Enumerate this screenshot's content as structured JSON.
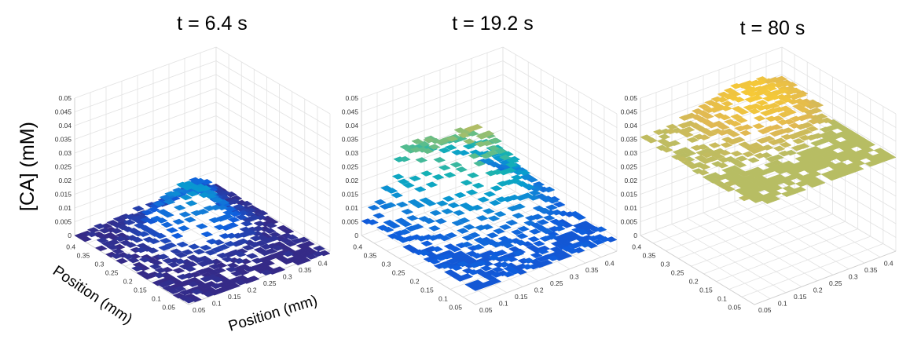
{
  "figure": {
    "zlabel": "[CA] (mM)",
    "xlabel": "Position (mm)",
    "ylabel": "Position (mm)"
  },
  "chart_data": [
    {
      "type": "surface",
      "title": "t = 6.4 s",
      "zlim": [
        0,
        0.05
      ],
      "z_ticks": [
        "0",
        "0.005",
        "0.01",
        "0.015",
        "0.02",
        "0.025",
        "0.03",
        "0.035",
        "0.04",
        "0.045",
        "0.05"
      ],
      "x_ticks": [
        "0.05",
        "0.1",
        "0.15",
        "0.2",
        "0.25",
        "0.3",
        "0.35",
        "0.4"
      ],
      "y_ticks": [
        "0.05",
        "0.1",
        "0.15",
        "0.2",
        "0.25",
        "0.3",
        "0.35",
        "0.4"
      ],
      "colormap": "parula",
      "base_level_mM": 0.0,
      "peak_level_mM": 0.022,
      "grid": true
    },
    {
      "type": "surface",
      "title": "t = 19.2 s",
      "zlim": [
        0,
        0.05
      ],
      "z_ticks": [
        "0",
        "0.005",
        "0.01",
        "0.015",
        "0.02",
        "0.025",
        "0.03",
        "0.035",
        "0.04",
        "0.045",
        "0.05"
      ],
      "x_ticks": [
        "0.05",
        "0.1",
        "0.15",
        "0.2",
        "0.25",
        "0.3",
        "0.35",
        "0.4"
      ],
      "y_ticks": [
        "0.05",
        "0.1",
        "0.15",
        "0.2",
        "0.25",
        "0.3",
        "0.35",
        "0.4"
      ],
      "colormap": "parula",
      "base_level_mM": 0.005,
      "peak_level_mM": 0.04,
      "grid": true
    },
    {
      "type": "surface",
      "title": "t = 80 s",
      "zlim": [
        0,
        0.05
      ],
      "z_ticks": [
        "0",
        "0.005",
        "0.01",
        "0.015",
        "0.02",
        "0.025",
        "0.03",
        "0.035",
        "0.04",
        "0.045",
        "0.05"
      ],
      "x_ticks": [
        "0.05",
        "0.1",
        "0.15",
        "0.2",
        "0.25",
        "0.3",
        "0.35",
        "0.4"
      ],
      "y_ticks": [
        "0.05",
        "0.1",
        "0.15",
        "0.2",
        "0.25",
        "0.3",
        "0.35",
        "0.4"
      ],
      "colormap": "parula",
      "base_level_mM": 0.035,
      "peak_level_mM": 0.05,
      "grid": true
    }
  ]
}
